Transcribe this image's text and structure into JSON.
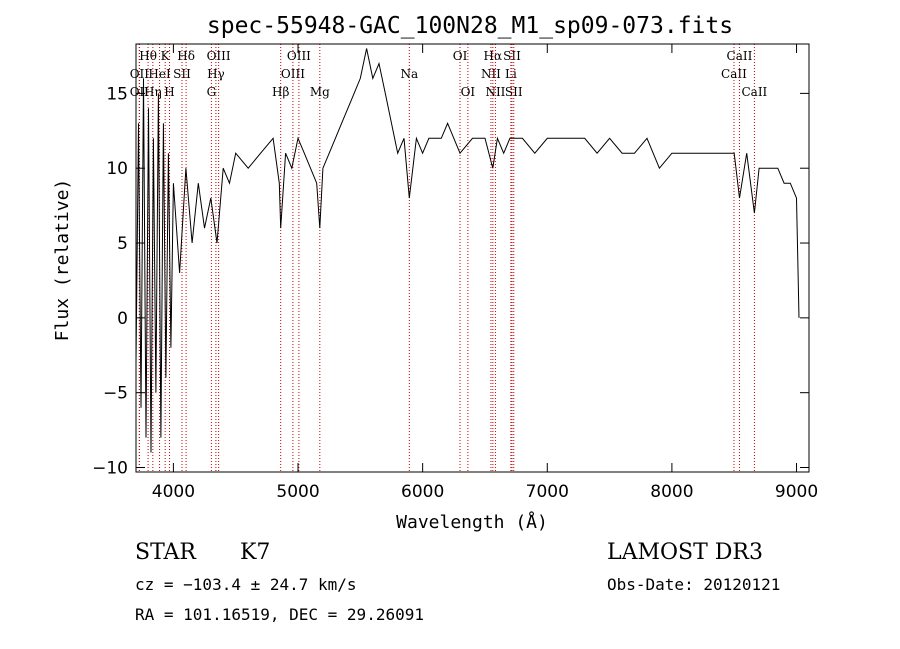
{
  "chart_data": {
    "type": "line",
    "title": "spec-55948-GAC_100N28_M1_sp09-073.fits",
    "xlabel": "Wavelength (Å)",
    "ylabel": "Flux (relative)",
    "xlim": [
      3700,
      9100
    ],
    "ylim": [
      -10.3,
      18.3
    ],
    "x_ticks": [
      4000,
      5000,
      6000,
      7000,
      8000,
      9000
    ],
    "y_ticks": [
      -10,
      -5,
      0,
      5,
      10,
      15
    ],
    "grid": false,
    "series": [
      {
        "x": [
          3700,
          3720,
          3740,
          3760,
          3780,
          3800,
          3820,
          3840,
          3860,
          3880,
          3900,
          3920,
          3940,
          3960,
          3980,
          4000,
          4050,
          4100,
          4150,
          4200,
          4250,
          4300,
          4350,
          4400,
          4450,
          4500,
          4600,
          4700,
          4800,
          4850,
          4861,
          4900,
          4950,
          5000,
          5050,
          5100,
          5150,
          5175,
          5200,
          5250,
          5300,
          5350,
          5400,
          5450,
          5500,
          5550,
          5600,
          5650,
          5700,
          5750,
          5800,
          5850,
          5893,
          5950,
          6000,
          6050,
          6100,
          6150,
          6200,
          6300,
          6400,
          6500,
          6563,
          6600,
          6650,
          6700,
          6800,
          6900,
          7000,
          7100,
          7200,
          7300,
          7400,
          7500,
          7600,
          7700,
          7800,
          7900,
          8000,
          8100,
          8200,
          8300,
          8400,
          8500,
          8542,
          8600,
          8662,
          8700,
          8800,
          8850,
          8900,
          8950,
          9000,
          9020
        ],
        "values": [
          -3,
          13,
          -6,
          16,
          -8,
          14,
          -9,
          12,
          -5,
          15,
          -8,
          13,
          -4,
          11,
          -2,
          9,
          3,
          10,
          5,
          9,
          6,
          8,
          5,
          10,
          9,
          11,
          10,
          11,
          12,
          9,
          6,
          11,
          10,
          12,
          11,
          10,
          9,
          6,
          10,
          11,
          12,
          13,
          14,
          15,
          16,
          18,
          16,
          17,
          15,
          13,
          11,
          12,
          8,
          12,
          11,
          12,
          12,
          12,
          13,
          11,
          12,
          12,
          10,
          12,
          11,
          12,
          12,
          11,
          12,
          12,
          12,
          12,
          11,
          12,
          11,
          11,
          12,
          10,
          11,
          11,
          11,
          11,
          11,
          11,
          8,
          11,
          7,
          10,
          10,
          10,
          9,
          9,
          8,
          0
        ]
      }
    ],
    "lines": [
      {
        "label": "Hθ",
        "x": 3797,
        "row": 0
      },
      {
        "label": "OII",
        "x": 3727,
        "row": 1
      },
      {
        "label": "OII",
        "x": 3727,
        "row": 2
      },
      {
        "label": "Hη",
        "x": 3835,
        "row": 2
      },
      {
        "label": "HeI",
        "x": 3889,
        "row": 1
      },
      {
        "label": "K",
        "x": 3934,
        "row": 0
      },
      {
        "label": "H",
        "x": 3969,
        "row": 2
      },
      {
        "label": "SII",
        "x": 4069,
        "row": 1
      },
      {
        "label": "Hδ",
        "x": 4102,
        "row": 0
      },
      {
        "label": "Hγ",
        "x": 4341,
        "row": 1
      },
      {
        "label": "G",
        "x": 4305,
        "row": 2
      },
      {
        "label": "OIII",
        "x": 4363,
        "row": 0
      },
      {
        "label": "Hβ",
        "x": 4861,
        "row": 2
      },
      {
        "label": "OIII",
        "x": 4959,
        "row": 1
      },
      {
        "label": "OIII",
        "x": 5007,
        "row": 0
      },
      {
        "label": "Mg",
        "x": 5175,
        "row": 2
      },
      {
        "label": "Na",
        "x": 5893,
        "row": 1
      },
      {
        "label": "OI",
        "x": 6300,
        "row": 0
      },
      {
        "label": "OI",
        "x": 6363,
        "row": 2
      },
      {
        "label": "NII",
        "x": 6548,
        "row": 1
      },
      {
        "label": "Hα",
        "x": 6563,
        "row": 0
      },
      {
        "label": "NII",
        "x": 6584,
        "row": 2
      },
      {
        "label": "Li",
        "x": 6708,
        "row": 1
      },
      {
        "label": "SII",
        "x": 6717,
        "row": 0
      },
      {
        "label": "SII",
        "x": 6731,
        "row": 2
      },
      {
        "label": "CaII",
        "x": 8498,
        "row": 1
      },
      {
        "label": "CaII",
        "x": 8542,
        "row": 0
      },
      {
        "label": "CaII",
        "x": 8662,
        "row": 2
      }
    ],
    "line_color": "#cc0000"
  },
  "info": {
    "class_label": "STAR",
    "subclass": "K7",
    "survey": "LAMOST DR3",
    "cz": "cz = −103.4 ± 24.7 km/s",
    "obs_date": "Obs-Date: 20120121",
    "radec": "RA = 101.16519, DEC =  29.26091"
  }
}
